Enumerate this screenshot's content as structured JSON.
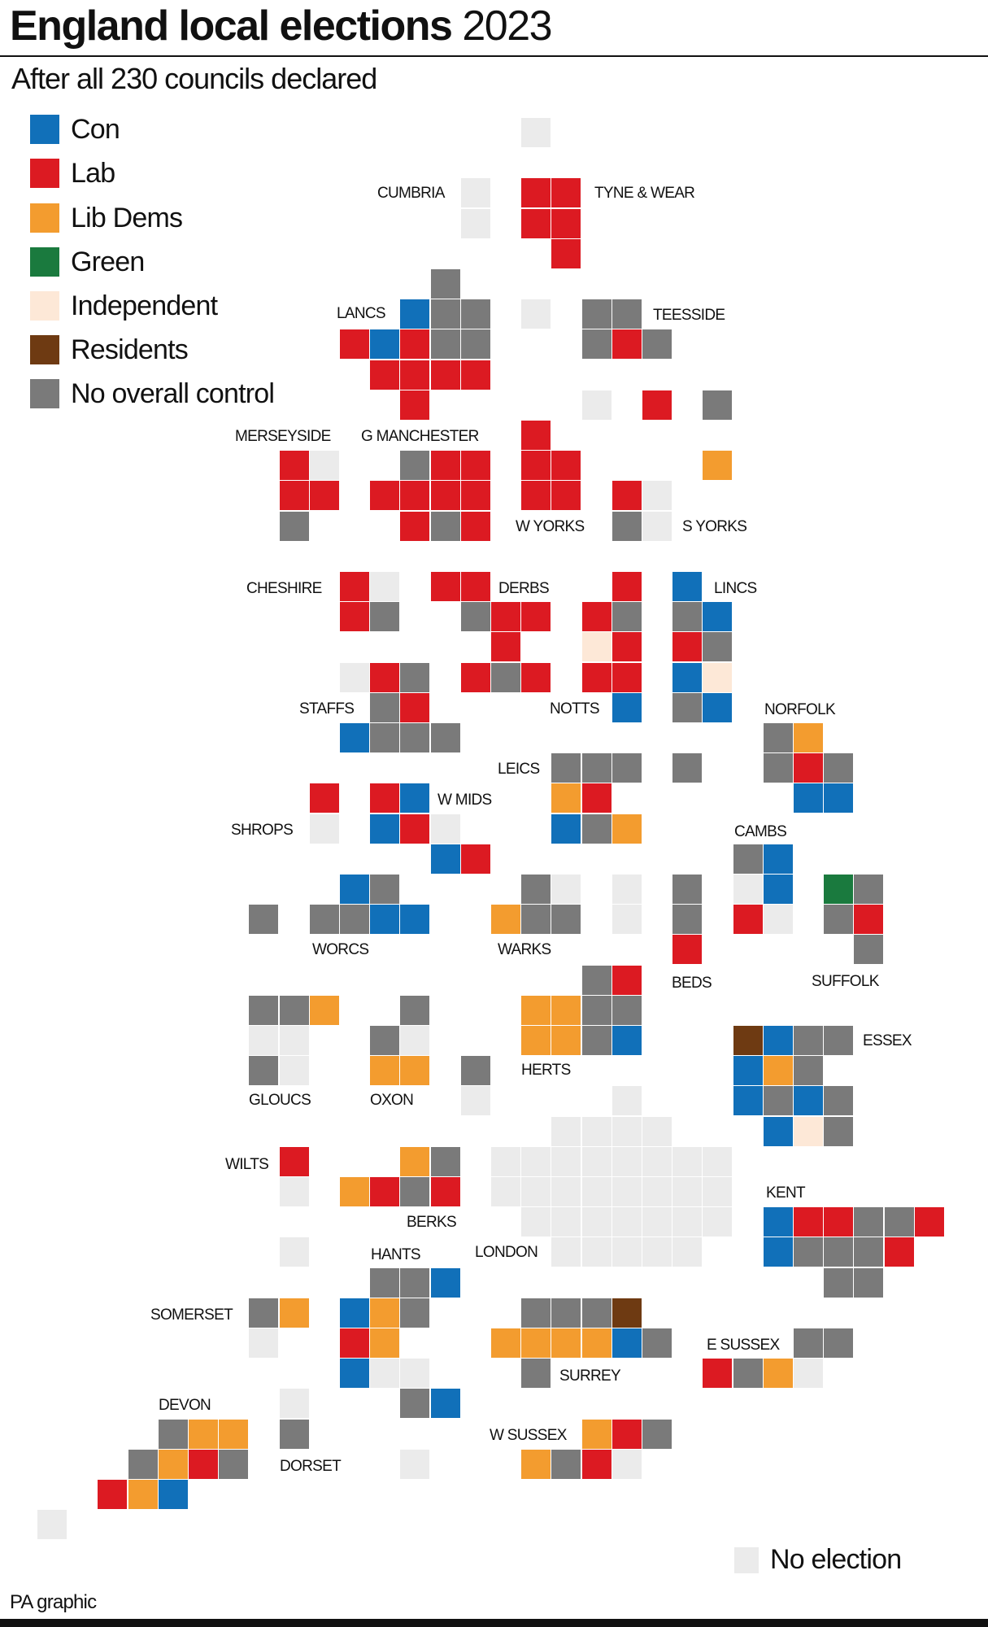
{
  "title_bold": "England local elections",
  "title_year": "2023",
  "subtitle": "After all 230 councils declared",
  "credit": "PA graphic",
  "chart_data": {
    "type": "tile-map",
    "legend": [
      {
        "code": "C",
        "label": "Con",
        "color": "#1170b9"
      },
      {
        "code": "L",
        "label": "Lab",
        "color": "#dc1a22"
      },
      {
        "code": "D",
        "label": "Lib Dems",
        "color": "#f39c2f"
      },
      {
        "code": "G",
        "label": "Green",
        "color": "#1a7a3e"
      },
      {
        "code": "I",
        "label": "Independent",
        "color": "#fde8d7"
      },
      {
        "code": "R",
        "label": "Residents",
        "color": "#6e3a12"
      },
      {
        "code": "N",
        "label": "No overall control",
        "color": "#7a7a7a"
      }
    ],
    "no_election": {
      "code": "E",
      "label": "No election",
      "color": "#ebebeb"
    },
    "grid": [
      "................E.............",
      "..............................",
      "..............E.LL............",
      "..............E.LL............",
      ".................L............",
      ".............N................",
      "............CNN.E.NN..........",
      "..........LCLNN...NLN.........",
      "...........LLLL...............",
      "............L.....E.L.N.......",
      "................L.............",
      "........LE..NLL.LL....D.......",
      "........LL.LLLL.LL.LE.........",
      "........N...LNL....NE.........",
      "..............................",
      "..........LE.LL....L.C........",
      "..........LN..NLL.LN.NC.......",
      "...............L..IL.LN.......",
      "..........ELN.LNL.LL.CI.......",
      "...........NL......C.NC.......",
      "..........CNNN..........ND....",
      ".................NNN.N..NLN...",
      ".........L.LC....DL......CC...",
      ".........E.CLE...CND..........",
      ".............CL........NC.....",
      "..........CN....NE.E.N.EC.GN..",
      ".......N.NNCC..DNN.E.N.LE.NL..",
      ".....................L.....N..",
      "..................NL..........",
      ".......NND..N...DDNN..........",
      ".......EE..NE...DDNC...RCNN...",
      ".......NE..DD.N........CDN....",
      "..............E....E...CNCN...",
      ".................EEEE...CIN...",
      "........L...DN.EEEEEEEE.......",
      "........E.DLNL.EEEEEEEE.......",
      "................EEEEEEE.CLLNNL",
      "........E........EEEEE..CNNNL.",
      "...........NNC............NN..",
      ".......ND.CDN...NNNR..........",
      ".......E..LD...DDDDCN....NN...",
      "..........CEE...N.....LNDE....",
      "........E...NC................",
      "....NDD.N.........DLN.........",
      "...NDLN.....E...DNLE..........",
      "..LDC.........................",
      "E............................."
    ],
    "regions": {
      "cumbria": "CUMBRIA",
      "tyne_wear": "TYNE & WEAR",
      "lancs": "LANCS",
      "teesside": "TEESSIDE",
      "merseyside": "MERSEYSIDE",
      "g_manchester": "G MANCHESTER",
      "w_yorks": "W YORKS",
      "s_yorks": "S YORKS",
      "cheshire": "CHESHIRE",
      "derbs": "DERBS",
      "lincs": "LINCS",
      "staffs": "STAFFS",
      "notts": "NOTTS",
      "norfolk": "NORFOLK",
      "leics": "LEICS",
      "w_mids": "W MIDS",
      "shrops": "SHROPS",
      "cambs": "CAMBS",
      "worcs": "WORCS",
      "warks": "WARKS",
      "beds": "BEDS",
      "suffolk": "SUFFOLK",
      "essex": "ESSEX",
      "gloucs": "GLOUCS",
      "oxon": "OXON",
      "herts": "HERTS",
      "wilts": "WILTS",
      "berks": "BERKS",
      "kent": "KENT",
      "hants": "HANTS",
      "london": "LONDON",
      "somerset": "SOMERSET",
      "surrey": "SURREY",
      "e_sussex": "E SUSSEX",
      "devon": "DEVON",
      "dorset": "DORSET",
      "w_sussex": "W SUSSEX"
    }
  }
}
